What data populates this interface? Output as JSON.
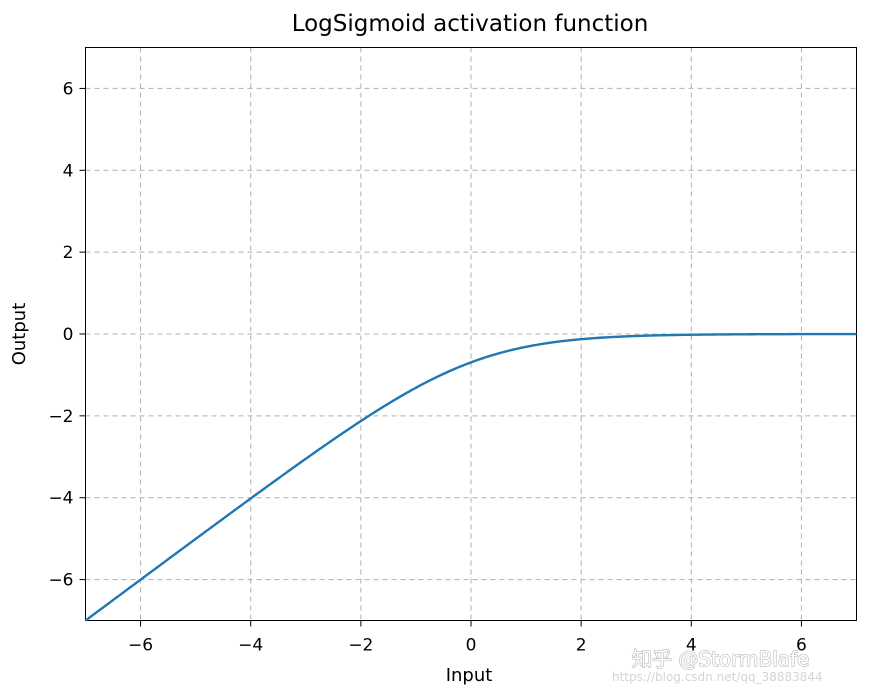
{
  "chart_data": {
    "type": "line",
    "title": "LogSigmoid activation function",
    "xlabel": "Input",
    "ylabel": "Output",
    "xlim": [
      -7,
      7
    ],
    "ylim": [
      -7,
      7
    ],
    "xticks": [
      -6,
      -4,
      -2,
      0,
      2,
      4,
      6
    ],
    "yticks": [
      -6,
      -4,
      -2,
      0,
      2,
      4,
      6
    ],
    "xtick_labels": [
      "−6",
      "−4",
      "−2",
      "0",
      "2",
      "4",
      "6"
    ],
    "ytick_labels": [
      "−6",
      "−4",
      "−2",
      "0",
      "2",
      "4",
      "6"
    ],
    "grid": true,
    "grid_style": "dashed",
    "series": [
      {
        "function": "log(1 / (1 + exp(-x)))",
        "color": "#1f77b4",
        "x": [
          -7,
          -6,
          -5,
          -4,
          -3,
          -2,
          -1,
          0,
          1,
          2,
          3,
          4,
          5,
          6,
          7
        ],
        "y": [
          -7.0009,
          -6.0025,
          -5.0067,
          -4.0181,
          -3.0486,
          -2.1269,
          -1.3133,
          -0.6931,
          -0.3133,
          -0.1269,
          -0.0486,
          -0.0181,
          -0.0067,
          -0.0025,
          -0.0009
        ]
      }
    ]
  },
  "watermark": {
    "text": "知乎 @StormBlafe",
    "url": "https://blog.csdn.net/qq_38883844"
  }
}
